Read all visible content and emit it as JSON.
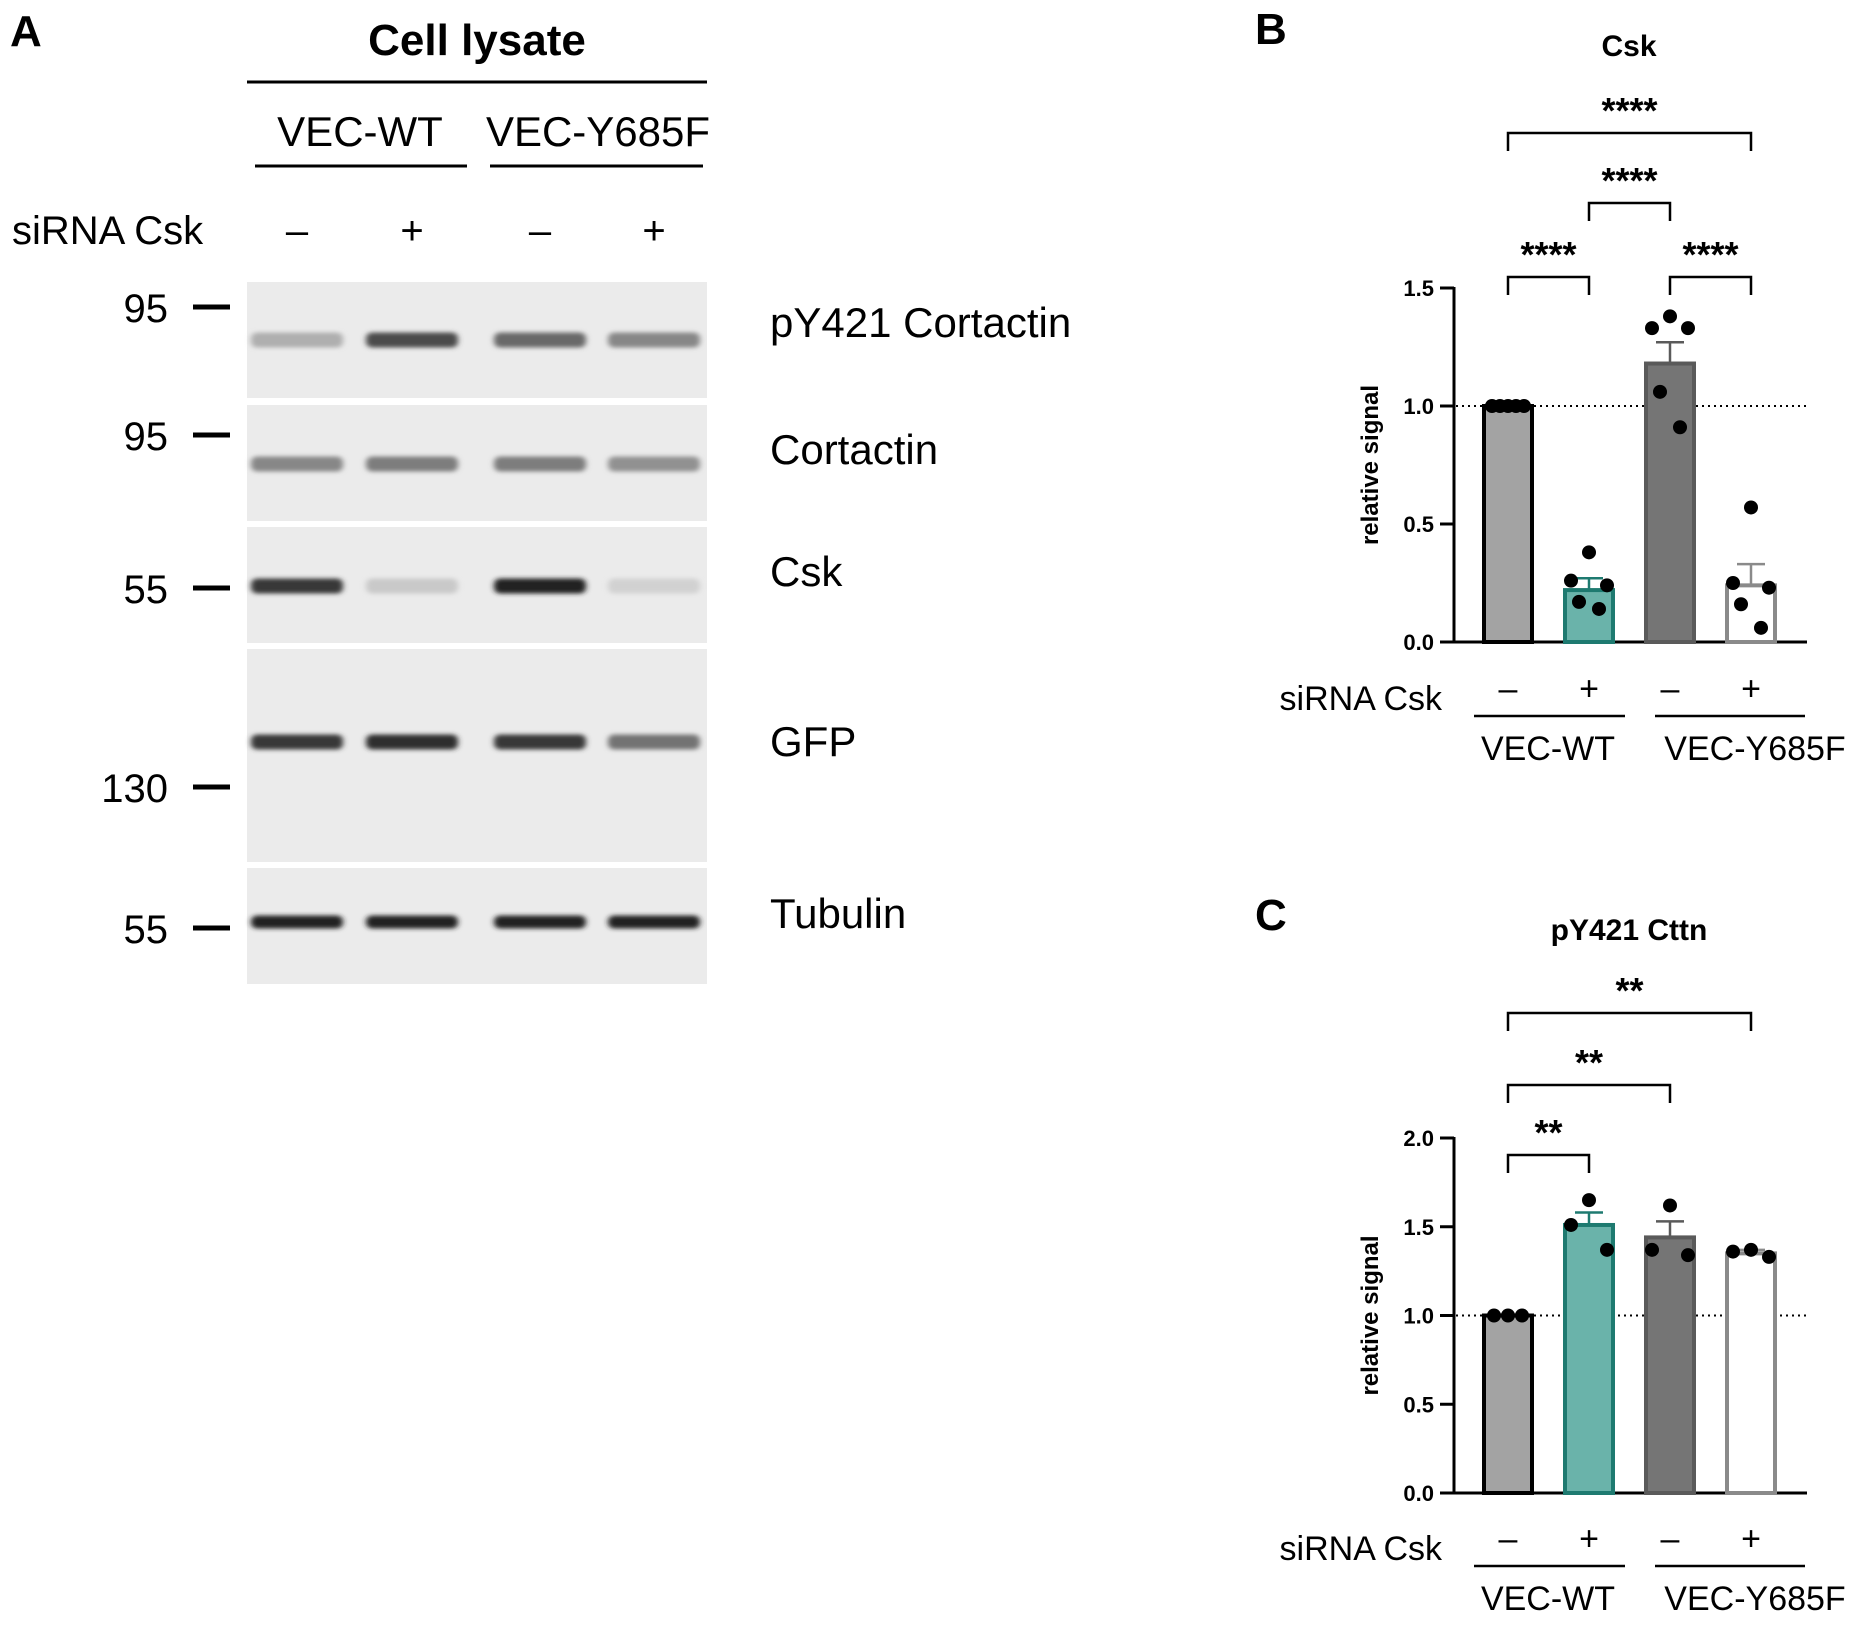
{
  "panel_a": {
    "letter": "A",
    "title": "Cell lysate",
    "groups": [
      "VEC-WT",
      "VEC-Y685F"
    ],
    "condition_label": "siRNA Csk",
    "condition_signs": [
      "–",
      "+",
      "–",
      "+"
    ],
    "blots": [
      {
        "marker": "95",
        "antibody": "pY421 Cortactin",
        "intensities": [
          0.25,
          0.75,
          0.6,
          0.45
        ]
      },
      {
        "marker": "95",
        "antibody": "Cortactin",
        "intensities": [
          0.45,
          0.5,
          0.5,
          0.4
        ]
      },
      {
        "marker": "55",
        "antibody": "Csk",
        "intensities": [
          0.85,
          0.12,
          0.95,
          0.08
        ]
      },
      {
        "marker": "130",
        "antibody": "GFP",
        "intensities": [
          0.85,
          0.9,
          0.85,
          0.55
        ]
      },
      {
        "marker": "55",
        "antibody": "Tubulin",
        "intensities": [
          0.95,
          0.95,
          0.95,
          0.95
        ]
      }
    ]
  },
  "chart_data": [
    {
      "letter": "B",
      "type": "bar",
      "title": "Csk",
      "ylabel": "relative signal",
      "ylim": [
        0,
        1.5
      ],
      "yticks": [
        "0.0",
        "0.5",
        "1.0",
        "1.5"
      ],
      "reference_line": 1.0,
      "categories": [
        "–",
        "+",
        "–",
        "+"
      ],
      "row_label": "siRNA Csk",
      "groups": [
        "VEC-WT",
        "VEC-Y685F"
      ],
      "values": [
        1.0,
        0.22,
        1.18,
        0.24
      ],
      "sem": [
        0.0,
        0.05,
        0.09,
        0.09
      ],
      "points": [
        [
          1.0,
          1.0,
          1.0,
          1.0,
          1.0
        ],
        [
          0.38,
          0.26,
          0.24,
          0.17,
          0.14
        ],
        [
          1.38,
          1.33,
          1.33,
          1.06,
          0.91
        ],
        [
          0.57,
          0.25,
          0.23,
          0.16,
          0.06
        ]
      ],
      "significance": [
        {
          "from": 0,
          "to": 1,
          "label": "****"
        },
        {
          "from": 2,
          "to": 3,
          "label": "****"
        },
        {
          "from": 1,
          "to": 2,
          "label": "****"
        },
        {
          "from": 0,
          "to": 3,
          "label": "****"
        }
      ],
      "bar_colors": [
        "#a3a3a3",
        "#6ab3aa",
        "#757575",
        "#ffffff"
      ],
      "edge_colors": [
        "#000000",
        "#1e7a70",
        "#5a5a5a",
        "#8a8a8a"
      ]
    },
    {
      "letter": "C",
      "type": "bar",
      "title": "pY421 Cttn",
      "ylabel": "relative signal",
      "ylim": [
        0,
        2.0
      ],
      "yticks": [
        "0.0",
        "0.5",
        "1.0",
        "1.5",
        "2.0"
      ],
      "reference_line": 1.0,
      "categories": [
        "–",
        "+",
        "–",
        "+"
      ],
      "row_label": "siRNA Csk",
      "groups": [
        "VEC-WT",
        "VEC-Y685F"
      ],
      "values": [
        1.0,
        1.51,
        1.44,
        1.35
      ],
      "sem": [
        0.0,
        0.07,
        0.09,
        0.02
      ],
      "points": [
        [
          1.0,
          1.0,
          1.0
        ],
        [
          1.65,
          1.51,
          1.37
        ],
        [
          1.62,
          1.37,
          1.34
        ],
        [
          1.37,
          1.36,
          1.33
        ]
      ],
      "significance": [
        {
          "from": 0,
          "to": 1,
          "label": "**"
        },
        {
          "from": 0,
          "to": 2,
          "label": "**"
        },
        {
          "from": 0,
          "to": 3,
          "label": "**"
        }
      ],
      "bar_colors": [
        "#a3a3a3",
        "#6ab3aa",
        "#757575",
        "#ffffff"
      ],
      "edge_colors": [
        "#000000",
        "#1e7a70",
        "#5a5a5a",
        "#8a8a8a"
      ]
    }
  ]
}
